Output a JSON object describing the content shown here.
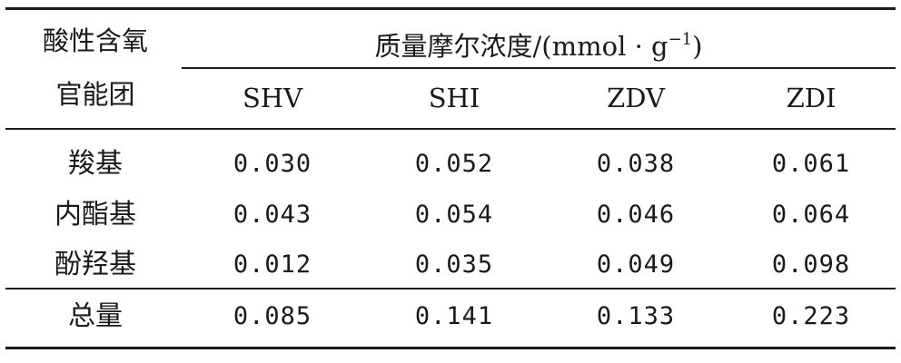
{
  "table": {
    "row_header_title_line1": "酸性含氧",
    "row_header_title_line2": "官能团",
    "group_header_prefix": "质量摩尔浓度/(mmol · g",
    "group_header_sup": "−1",
    "group_header_suffix": ")",
    "columns": [
      "SHV",
      "SHI",
      "ZDV",
      "ZDI"
    ],
    "rows": [
      {
        "label": "羧基",
        "values": [
          "0.030",
          "0.052",
          "0.038",
          "0.061"
        ]
      },
      {
        "label": "内酯基",
        "values": [
          "0.043",
          "0.054",
          "0.046",
          "0.064"
        ]
      },
      {
        "label": "酚羟基",
        "values": [
          "0.012",
          "0.035",
          "0.049",
          "0.098"
        ]
      }
    ],
    "total": {
      "label": "总量",
      "values": [
        "0.085",
        "0.141",
        "0.133",
        "0.223"
      ]
    }
  }
}
